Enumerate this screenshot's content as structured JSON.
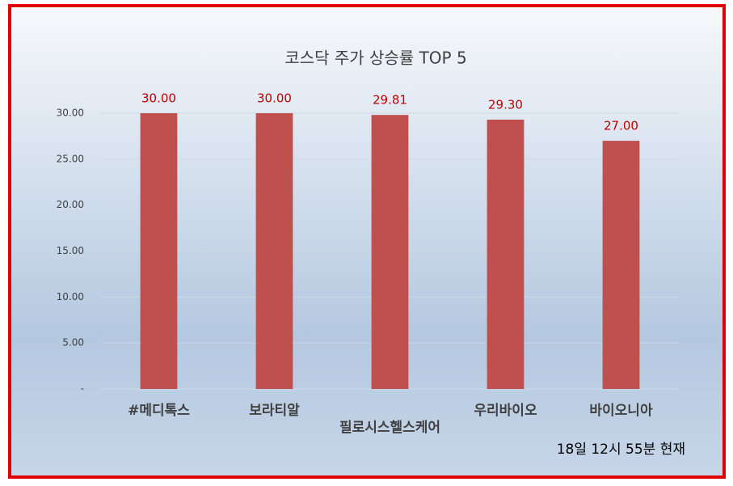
{
  "chart_data": {
    "type": "bar",
    "title": "코스닥 주가 상승률 TOP 5",
    "categories": [
      "#메디톡스",
      "보라티알",
      "필로시스헬스케어",
      "우리바이오",
      "바이오니아"
    ],
    "values": [
      30,
      30,
      29.81,
      29.3,
      27
    ],
    "value_labels": [
      "30.00",
      "30.00",
      "29.81",
      "29.30",
      "27.00"
    ],
    "color": "#c0504d",
    "ylim": [
      0,
      30
    ],
    "yticks": [
      {
        "value": 0,
        "label": "-"
      },
      {
        "value": 5,
        "label": "5.00"
      },
      {
        "value": 10,
        "label": "10.00"
      },
      {
        "value": 15,
        "label": "15.00"
      },
      {
        "value": 20,
        "label": "20.00"
      },
      {
        "value": 25,
        "label": "25.00"
      },
      {
        "value": 30,
        "label": "30.00"
      }
    ],
    "grid": true,
    "annotation": "18일 12시  55분 현재"
  }
}
